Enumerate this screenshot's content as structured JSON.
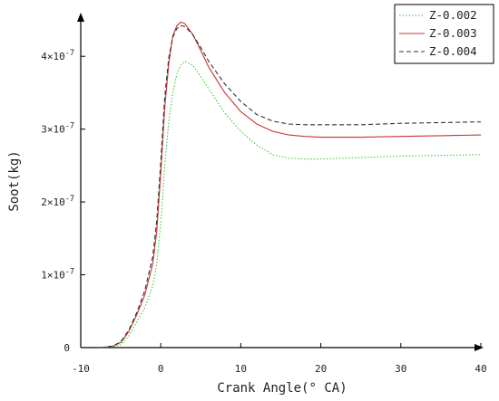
{
  "chart_data": {
    "type": "line",
    "xlabel": "Crank Angle(° CA)",
    "ylabel": "Soot(kg)",
    "xlim": [
      -10,
      40
    ],
    "ylim": [
      0,
      4.5e-07
    ],
    "x_ticks": [
      {
        "value": -10,
        "label": "-10"
      },
      {
        "value": 0,
        "label": "0"
      },
      {
        "value": 10,
        "label": "10"
      },
      {
        "value": 20,
        "label": "20"
      },
      {
        "value": 30,
        "label": "30"
      },
      {
        "value": 40,
        "label": "40"
      }
    ],
    "y_ticks": [
      {
        "value": 0,
        "label": "0",
        "exp": ""
      },
      {
        "value": 1e-07,
        "label": "1×10",
        "exp": "-7"
      },
      {
        "value": 2e-07,
        "label": "2×10",
        "exp": "-7"
      },
      {
        "value": 3e-07,
        "label": "3×10",
        "exp": "-7"
      },
      {
        "value": 4e-07,
        "label": "4×10",
        "exp": "-7"
      }
    ],
    "grid": false,
    "legend_position": "top-right",
    "series": [
      {
        "name": "Z-0.002",
        "color": "#33cc33",
        "dash": "dotted",
        "x": [
          -7.5,
          -6,
          -5,
          -4,
          -3,
          -2,
          -1,
          -0.5,
          0,
          0.5,
          1,
          1.5,
          2,
          2.5,
          3,
          4,
          5,
          6,
          8,
          10,
          12,
          14,
          16,
          18,
          20,
          25,
          30,
          35,
          40
        ],
        "y": [
          0,
          1e-09,
          4e-09,
          1.6e-08,
          3.5e-08,
          5.5e-08,
          8.5e-08,
          1.15e-07,
          1.7e-07,
          2.5e-07,
          3.1e-07,
          3.5e-07,
          3.75e-07,
          3.88e-07,
          3.93e-07,
          3.88e-07,
          3.72e-07,
          3.55e-07,
          3.22e-07,
          2.97e-07,
          2.78e-07,
          2.65e-07,
          2.6e-07,
          2.59e-07,
          2.59e-07,
          2.61e-07,
          2.63e-07,
          2.64e-07,
          2.65e-07
        ]
      },
      {
        "name": "Z-0.003",
        "color": "#cc3333",
        "dash": "solid",
        "x": [
          -7.5,
          -6,
          -5,
          -4,
          -3,
          -2,
          -1,
          -0.5,
          0,
          0.5,
          1,
          1.5,
          2,
          2.5,
          3,
          4,
          5,
          6,
          8,
          10,
          12,
          14,
          16,
          18,
          20,
          25,
          30,
          35,
          40
        ],
        "y": [
          0,
          2e-09,
          7e-09,
          2.2e-08,
          4.5e-08,
          7.2e-08,
          1.15e-07,
          1.6e-07,
          2.4e-07,
          3.3e-07,
          3.9e-07,
          4.28e-07,
          4.42e-07,
          4.47e-07,
          4.45e-07,
          4.3e-07,
          4.08e-07,
          3.85e-07,
          3.5e-07,
          3.24e-07,
          3.07e-07,
          2.97e-07,
          2.92e-07,
          2.9e-07,
          2.89e-07,
          2.89e-07,
          2.9e-07,
          2.91e-07,
          2.92e-07
        ]
      },
      {
        "name": "Z-0.004",
        "color": "#333333",
        "dash": "dashed",
        "x": [
          -7.5,
          -6,
          -5,
          -4,
          -3,
          -2,
          -1,
          -0.5,
          0,
          0.5,
          1,
          1.5,
          2,
          2.5,
          3,
          4,
          5,
          6,
          8,
          10,
          12,
          14,
          16,
          18,
          20,
          25,
          30,
          35,
          40
        ],
        "y": [
          0,
          2e-09,
          8e-09,
          2.4e-08,
          4.8e-08,
          7.8e-08,
          1.25e-07,
          1.75e-07,
          2.55e-07,
          3.45e-07,
          3.98e-07,
          4.26e-07,
          4.38e-07,
          4.42e-07,
          4.41e-07,
          4.3e-07,
          4.12e-07,
          3.93e-07,
          3.62e-07,
          3.38e-07,
          3.2e-07,
          3.11e-07,
          3.07e-07,
          3.06e-07,
          3.06e-07,
          3.06e-07,
          3.08e-07,
          3.09e-07,
          3.1e-07
        ]
      }
    ]
  }
}
